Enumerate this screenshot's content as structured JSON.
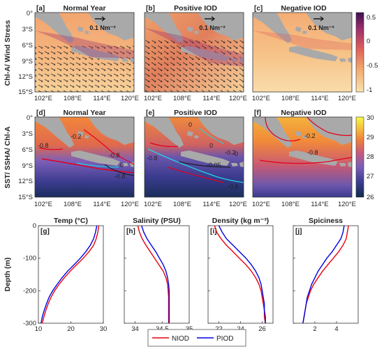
{
  "chart_data": {
    "type": "figure",
    "row_labels": [
      "Chl-A/ Wind Stress",
      "SST/ SSHA/ Chl-A"
    ],
    "maps": {
      "x_ticks": [
        "102°E",
        "108°E",
        "114°E",
        "120°E"
      ],
      "y_ticks": [
        "0°",
        "3°S",
        "6°S",
        "9°S",
        "12°S",
        "15°S"
      ],
      "wind_ref_label": "0.1 Nm⁻²",
      "row1": [
        {
          "letter": "[a]",
          "title": "Normal Year"
        },
        {
          "letter": "[b]",
          "title": "Positive IOD"
        },
        {
          "letter": "[c]",
          "title": "Negative IOD"
        }
      ],
      "row2": [
        {
          "letter": "[d]",
          "title": "Normal Year",
          "contour_labels": [
            "-0.2",
            "-0.8",
            "-0.8",
            "-0.8",
            "0"
          ]
        },
        {
          "letter": "[e]",
          "title": "Positive IOD",
          "contour_labels": [
            "0",
            "0",
            "-0.8",
            "-0.05",
            "-0.8",
            "-0.2",
            "0"
          ]
        },
        {
          "letter": "[f]",
          "title": "Negative IOD",
          "contour_labels": [
            "-0.2",
            "-0.8"
          ]
        }
      ],
      "colorbar1": {
        "ticks": [
          "0.5",
          "0",
          "-0.5",
          "-1"
        ],
        "range": [
          -1,
          0.5
        ],
        "colors": [
          "#fbe3ad",
          "#f4a66b",
          "#dc5e58",
          "#9c2d6e",
          "#3b0f4f"
        ]
      },
      "colorbar2": {
        "ticks": [
          "30",
          "29",
          "28",
          "27",
          "26"
        ],
        "range": [
          26,
          30
        ],
        "colors": [
          "#0f2a4a",
          "#3f3e95",
          "#7b5fb8",
          "#c65a7e",
          "#f0833a",
          "#f7c33a",
          "#f7f94a"
        ]
      }
    },
    "profiles": {
      "ylabel": "Depth (m)",
      "y_ticks": [
        "0",
        "-100",
        "-200",
        "-300"
      ],
      "ylim": [
        -300,
        0
      ],
      "depth": [
        0,
        -20,
        -40,
        -60,
        -80,
        -100,
        -120,
        -140,
        -160,
        -180,
        -200,
        -220,
        -240,
        -260,
        -280,
        -300
      ],
      "panels": [
        {
          "letter": "[g]",
          "title": "Temp (°C)",
          "xlim": [
            10,
            30
          ],
          "xticks": [
            "10",
            "20",
            "30"
          ],
          "NIOD": [
            28.6,
            28.3,
            27.8,
            27.0,
            25.6,
            23.8,
            21.8,
            19.8,
            18.0,
            16.4,
            15.0,
            13.9,
            13.0,
            12.3,
            11.7,
            11.2
          ],
          "PIOD": [
            28.0,
            27.6,
            27.0,
            26.0,
            24.6,
            22.9,
            21.0,
            19.0,
            17.3,
            15.8,
            14.4,
            13.3,
            12.5,
            11.8,
            11.2,
            10.8
          ]
        },
        {
          "letter": "[h]",
          "title": "Salinity (PSU)",
          "xlim": [
            33.8,
            35
          ],
          "xticks": [
            "34",
            "34.5",
            "35"
          ],
          "NIOD": [
            34.05,
            34.08,
            34.13,
            34.2,
            34.28,
            34.36,
            34.44,
            34.52,
            34.57,
            34.6,
            34.61,
            34.62,
            34.62,
            34.62,
            34.62,
            34.62
          ],
          "PIOD": [
            34.12,
            34.16,
            34.22,
            34.3,
            34.38,
            34.45,
            34.52,
            34.57,
            34.6,
            34.62,
            34.63,
            34.63,
            34.63,
            34.63,
            34.63,
            34.63
          ]
        },
        {
          "letter": "[i]",
          "title": "Density (kg m⁻³)",
          "xlim": [
            21,
            27
          ],
          "xticks": [
            "22",
            "24",
            "26"
          ],
          "NIOD": [
            21.6,
            21.8,
            22.2,
            22.7,
            23.3,
            23.9,
            24.5,
            25.0,
            25.4,
            25.7,
            25.9,
            26.0,
            26.1,
            26.2,
            26.2,
            26.3
          ],
          "PIOD": [
            22.0,
            22.3,
            22.7,
            23.3,
            23.9,
            24.5,
            25.0,
            25.4,
            25.7,
            25.9,
            26.0,
            26.1,
            26.2,
            26.2,
            26.3,
            26.3
          ]
        },
        {
          "letter": "[j]",
          "title": "Spiciness",
          "xlim": [
            0,
            6
          ],
          "xticks": [
            "2",
            "4"
          ],
          "NIOD": [
            5.1,
            5.0,
            4.9,
            4.6,
            4.2,
            3.7,
            3.2,
            2.7,
            2.3,
            1.9,
            1.6,
            1.4,
            1.2,
            1.1,
            1.0,
            0.9
          ],
          "PIOD": [
            4.7,
            4.6,
            4.4,
            4.0,
            3.6,
            3.1,
            2.7,
            2.3,
            2.0,
            1.7,
            1.5,
            1.3,
            1.2,
            1.1,
            1.0,
            0.9
          ]
        }
      ],
      "series": [
        {
          "name": "NIOD",
          "color": "#e8000b"
        },
        {
          "name": "PIOD",
          "color": "#0000e0"
        }
      ]
    }
  }
}
